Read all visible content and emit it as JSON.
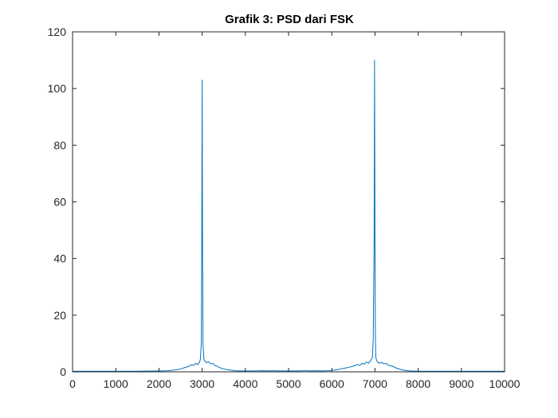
{
  "chart_data": {
    "type": "line",
    "title": "Grafik 3: PSD dari FSK",
    "xlabel": "",
    "ylabel": "",
    "xlim": [
      0,
      10000
    ],
    "ylim": [
      0,
      120
    ],
    "xticks": [
      0,
      1000,
      2000,
      3000,
      4000,
      5000,
      6000,
      7000,
      8000,
      9000,
      10000
    ],
    "yticks": [
      0,
      20,
      40,
      60,
      80,
      100,
      120
    ],
    "grid": false,
    "line_color": "#0072BD",
    "series": [
      {
        "x": [
          0,
          500,
          1000,
          1500,
          2000,
          2200,
          2400,
          2500,
          2600,
          2700,
          2750,
          2800,
          2850,
          2900,
          2940,
          2960,
          2980,
          2990,
          3000,
          3010,
          3020,
          3040,
          3060,
          3100,
          3150,
          3200,
          3250,
          3300,
          3350,
          3400,
          3500,
          3600,
          3700,
          3800,
          4000,
          4200,
          4400,
          4500,
          4600,
          4800,
          5000,
          5200,
          5400,
          5500,
          5600,
          5800,
          6000,
          6100,
          6200,
          6300,
          6400,
          6500,
          6600,
          6650,
          6700,
          6750,
          6800,
          6850,
          6900,
          6940,
          6960,
          6980,
          6990,
          7000,
          7010,
          7020,
          7040,
          7060,
          7100,
          7150,
          7200,
          7250,
          7300,
          7400,
          7500,
          7600,
          7700,
          7800,
          8000,
          8500,
          9000,
          9500,
          10000
        ],
        "y": [
          0.2,
          0.2,
          0.2,
          0.2,
          0.3,
          0.4,
          0.7,
          1.0,
          1.5,
          2.0,
          2.5,
          2.3,
          3.0,
          2.6,
          3.5,
          4.5,
          10,
          40,
          103,
          40,
          10,
          4.5,
          3.8,
          3.2,
          3.6,
          2.8,
          3.0,
          2.2,
          2.0,
          1.5,
          1.0,
          0.7,
          0.5,
          0.3,
          0.3,
          0.3,
          0.4,
          0.3,
          0.4,
          0.3,
          0.3,
          0.3,
          0.4,
          0.3,
          0.4,
          0.3,
          0.5,
          0.7,
          1.0,
          1.3,
          1.6,
          2.0,
          2.6,
          2.3,
          3.0,
          2.7,
          3.5,
          3.0,
          4.0,
          5.0,
          12,
          45,
          110,
          45,
          12,
          5.0,
          4.0,
          3.5,
          3.0,
          3.4,
          2.8,
          3.0,
          2.4,
          2.0,
          1.3,
          0.8,
          0.5,
          0.3,
          0.2,
          0.2,
          0.2,
          0.2,
          0.2
        ]
      }
    ]
  }
}
